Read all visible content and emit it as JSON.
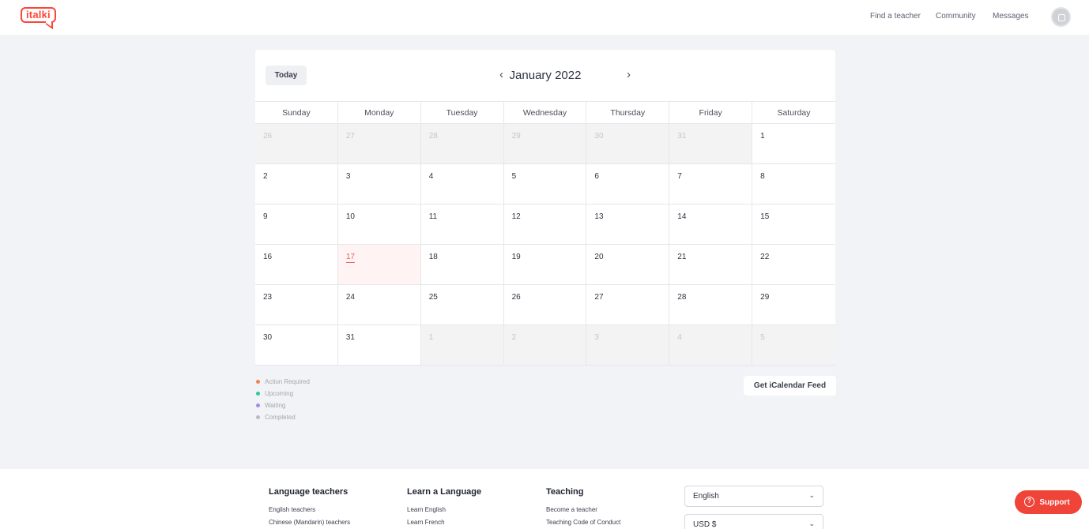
{
  "header": {
    "logo": "italki",
    "nav": [
      "Find a teacher",
      "Community",
      "Messages"
    ]
  },
  "calendar": {
    "today_label": "Today",
    "prev_icon": "‹",
    "next_icon": "›",
    "month_title": "January 2022",
    "weekdays": [
      "Sunday",
      "Monday",
      "Tuesday",
      "Wednesday",
      "Thursday",
      "Friday",
      "Saturday"
    ],
    "today_day": "17",
    "weeks": [
      [
        "26",
        "27",
        "28",
        "29",
        "30",
        "31",
        "1"
      ],
      [
        "2",
        "3",
        "4",
        "5",
        "6",
        "7",
        "8"
      ],
      [
        "9",
        "10",
        "11",
        "12",
        "13",
        "14",
        "15"
      ],
      [
        "16",
        "17",
        "18",
        "19",
        "20",
        "21",
        "22"
      ],
      [
        "23",
        "24",
        "25",
        "26",
        "27",
        "28",
        "29"
      ],
      [
        "30",
        "31",
        "1",
        "2",
        "3",
        "4",
        "5"
      ]
    ]
  },
  "legend": [
    {
      "label": "Action Required",
      "color": "#f0825a"
    },
    {
      "label": "Upcoming",
      "color": "#2cc9a3"
    },
    {
      "label": "Waiting",
      "color": "#a58be6"
    },
    {
      "label": "Completed",
      "color": "#b8bbc8"
    }
  ],
  "ical_button": "Get iCalendar Feed",
  "footer": {
    "columns": [
      {
        "title": "Language teachers",
        "links": [
          "English teachers",
          "Chinese (Mandarin) teachers"
        ]
      },
      {
        "title": "Learn a Language",
        "links": [
          "Learn English",
          "Learn French"
        ]
      },
      {
        "title": "Teaching",
        "links": [
          "Become a teacher",
          "Teaching Code of Conduct"
        ]
      }
    ],
    "language_select": "English",
    "currency_select": "USD $"
  },
  "support": {
    "label": "Support",
    "icon": "?"
  },
  "colors": {
    "brand": "#ff4438",
    "today_bg": "#fff3f3",
    "today_text": "#e86464"
  }
}
